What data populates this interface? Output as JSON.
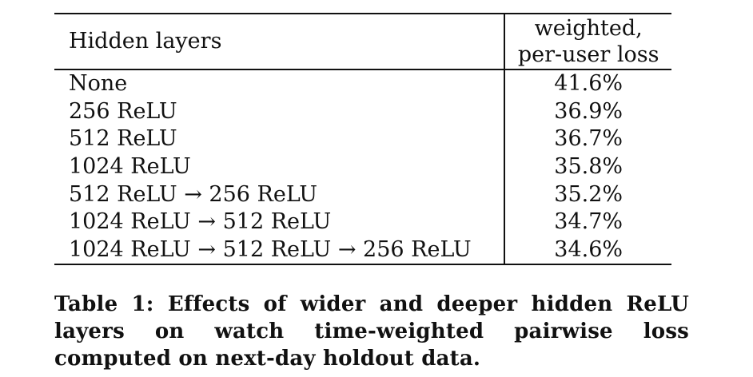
{
  "table": {
    "headers": {
      "layers": "Hidden layers",
      "loss_line1": "weighted,",
      "loss_line2": "per-user loss"
    },
    "rows": [
      {
        "layers": "None",
        "loss": "41.6%"
      },
      {
        "layers": "256 ReLU",
        "loss": "36.9%"
      },
      {
        "layers": "512 ReLU",
        "loss": "36.7%"
      },
      {
        "layers": "1024 ReLU",
        "loss": "35.8%"
      },
      {
        "layers": "512 ReLU → 256 ReLU",
        "loss": "35.2%"
      },
      {
        "layers": "1024 ReLU → 512 ReLU",
        "loss": "34.7%"
      },
      {
        "layers": "1024 ReLU → 512 ReLU → 256 ReLU",
        "loss": "34.6%"
      }
    ]
  },
  "caption": "Table 1: Effects of wider and deeper hidden ReLU layers on watch time-weighted pairwise loss computed on next-day holdout data."
}
